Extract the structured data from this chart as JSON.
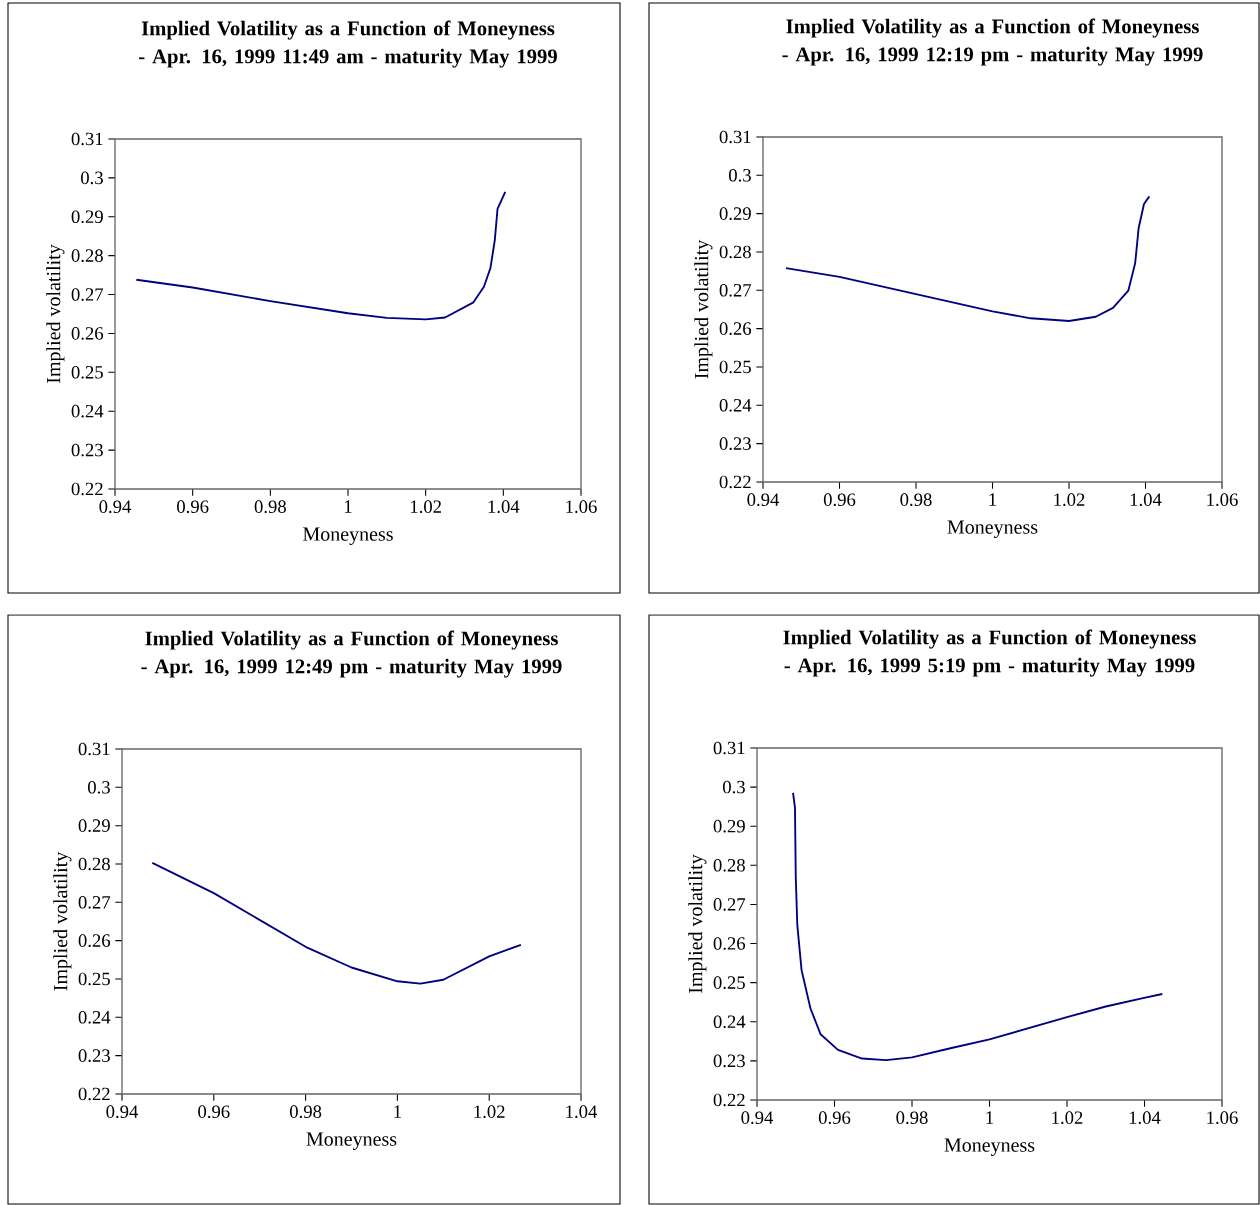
{
  "chart_data": [
    {
      "type": "line",
      "title": "Implied Volatility as a Function of Moneyness - Apr. 16, 1999 11:49 am - maturity May 1999",
      "xlabel": "Moneyness",
      "ylabel": "Implied volatility",
      "color": "#000080",
      "x": [
        0.9455,
        0.96,
        0.98,
        1.0,
        1.01,
        1.02,
        1.025,
        1.0323,
        1.035,
        1.0367,
        1.0378,
        1.0385,
        1.0405
      ],
      "values": [
        0.2738,
        0.2718,
        0.2683,
        0.2652,
        0.264,
        0.2636,
        0.2641,
        0.268,
        0.272,
        0.2769,
        0.284,
        0.292,
        0.2964
      ],
      "xlim": [
        0.94,
        1.06
      ],
      "ylim": [
        0.22,
        0.31
      ],
      "xticks": [
        0.94,
        0.96,
        0.98,
        1,
        1.02,
        1.04,
        1.06
      ],
      "yticks": [
        0.22,
        0.23,
        0.24,
        0.25,
        0.26,
        0.27,
        0.28,
        0.29,
        0.3,
        0.31
      ]
    },
    {
      "type": "line",
      "title": "Implied Volatility as a Function of Moneyness - Apr. 16, 1999 12:19 pm - maturity May 1999",
      "xlabel": "Moneyness",
      "ylabel": "Implied volatility",
      "color": "#000080",
      "x": [
        0.946,
        0.96,
        0.98,
        1.0,
        1.01,
        1.02,
        1.027,
        1.0315,
        1.0355,
        1.0373,
        1.0382,
        1.0396,
        1.041
      ],
      "values": [
        0.2758,
        0.2735,
        0.269,
        0.2645,
        0.2627,
        0.262,
        0.2631,
        0.2654,
        0.2699,
        0.2771,
        0.2862,
        0.2925,
        0.2945
      ],
      "xlim": [
        0.94,
        1.06
      ],
      "ylim": [
        0.22,
        0.31
      ],
      "xticks": [
        0.94,
        0.96,
        0.98,
        1,
        1.02,
        1.04,
        1.06
      ],
      "yticks": [
        0.22,
        0.23,
        0.24,
        0.25,
        0.26,
        0.27,
        0.28,
        0.29,
        0.3,
        0.31
      ]
    },
    {
      "type": "line",
      "title": "Implied Volatility as a Function of Moneyness - Apr. 16, 1999 12:49 pm - maturity May 1999",
      "xlabel": "Moneyness",
      "ylabel": "Implied volatility",
      "color": "#000080",
      "x": [
        0.9466,
        0.96,
        0.98,
        0.99,
        1.0,
        1.005,
        1.01,
        1.02,
        1.0269
      ],
      "values": [
        0.2803,
        0.2724,
        0.2584,
        0.253,
        0.2494,
        0.2488,
        0.2498,
        0.2559,
        0.2589
      ],
      "xlim": [
        0.94,
        1.04
      ],
      "ylim": [
        0.22,
        0.31
      ],
      "xticks": [
        0.94,
        0.96,
        0.98,
        1,
        1.02,
        1.04
      ],
      "yticks": [
        0.22,
        0.23,
        0.24,
        0.25,
        0.26,
        0.27,
        0.28,
        0.29,
        0.3,
        0.31
      ]
    },
    {
      "type": "line",
      "title": "Implied Volatility as a Function of Moneyness - Apr. 16, 1999 5:19 pm - maturity May 1999",
      "xlabel": "Moneyness",
      "ylabel": "Implied volatility",
      "color": "#000080",
      "x": [
        0.9493,
        0.9498,
        0.95,
        0.9504,
        0.9515,
        0.9538,
        0.9564,
        0.9609,
        0.9671,
        0.9733,
        0.98,
        0.9902,
        1.0,
        1.02,
        1.03,
        1.0399,
        1.0446
      ],
      "values": [
        0.2985,
        0.2947,
        0.277,
        0.2647,
        0.2532,
        0.2434,
        0.2368,
        0.2328,
        0.2306,
        0.2302,
        0.2309,
        0.2333,
        0.2355,
        0.2412,
        0.2439,
        0.2461,
        0.2471
      ],
      "xlim": [
        0.94,
        1.06
      ],
      "ylim": [
        0.22,
        0.31
      ],
      "xticks": [
        0.94,
        0.96,
        0.98,
        1,
        1.02,
        1.04,
        1.06
      ],
      "yticks": [
        0.22,
        0.23,
        0.24,
        0.25,
        0.26,
        0.27,
        0.28,
        0.29,
        0.3,
        0.31
      ]
    }
  ]
}
